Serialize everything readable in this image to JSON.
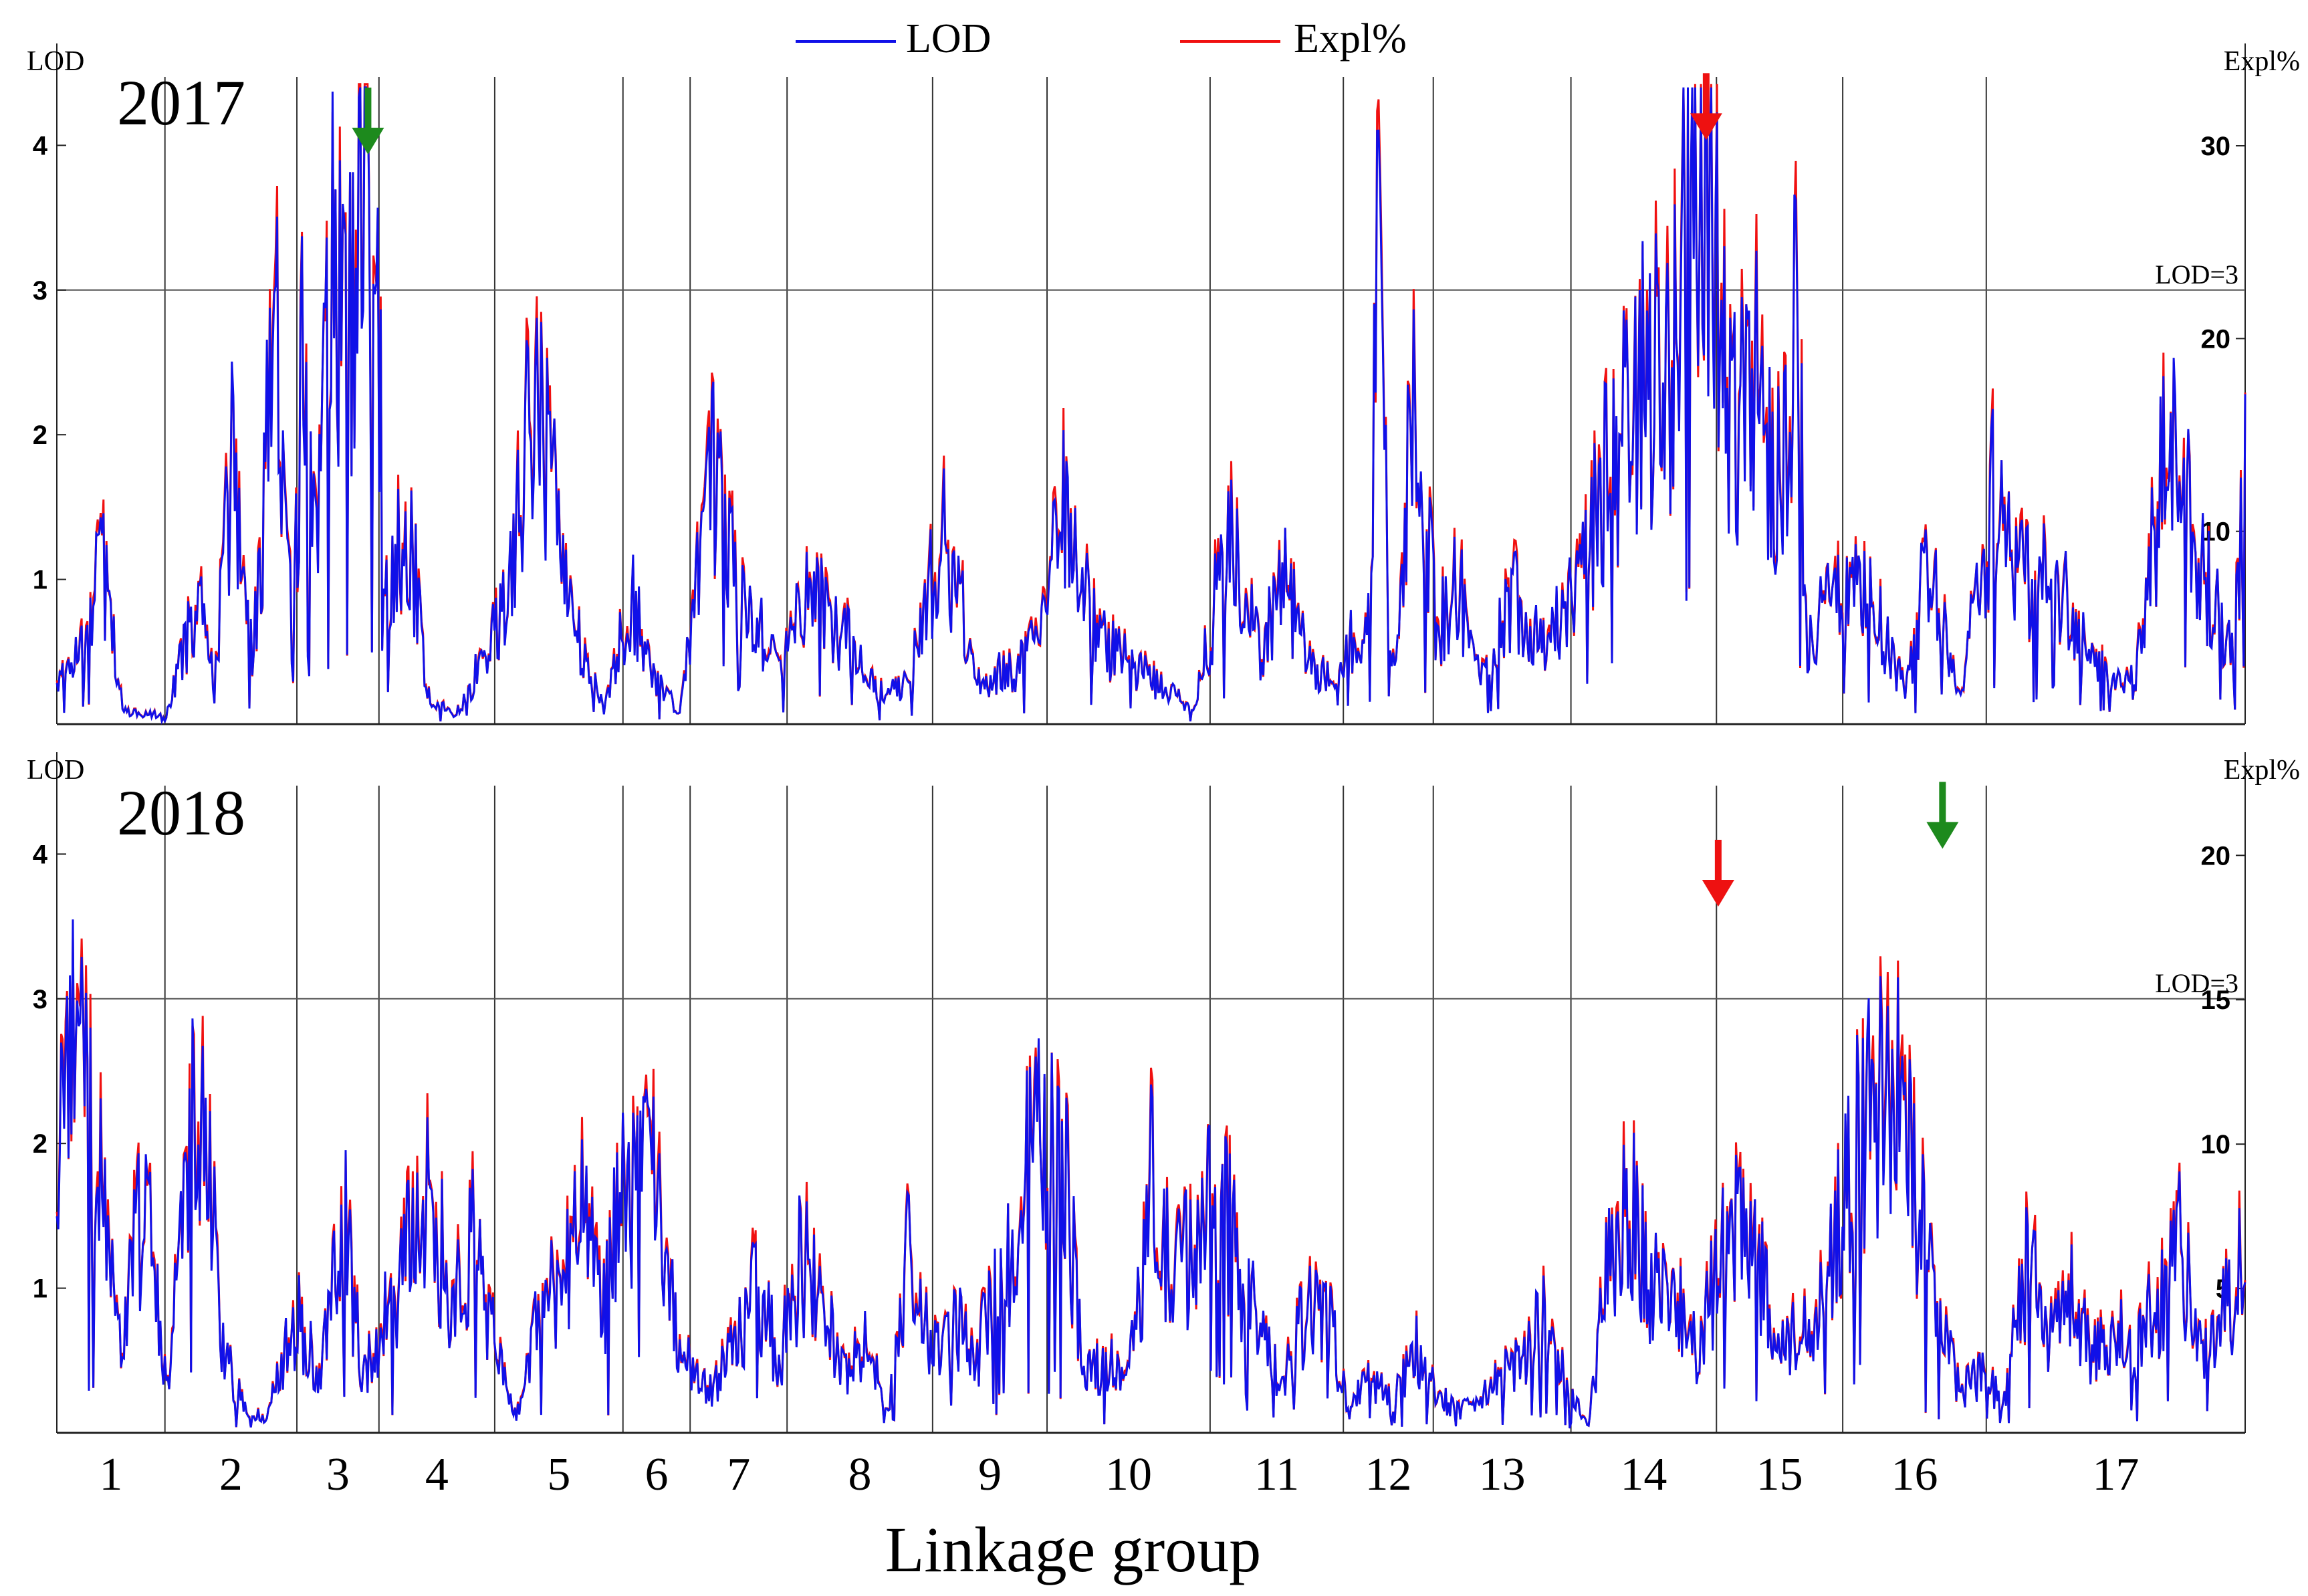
{
  "chart_data": {
    "type": "line",
    "xlabel": "Linkage group",
    "legend": {
      "position": "top-center",
      "entries": [
        {
          "name": "LOD",
          "color": "#1010e8"
        },
        {
          "name": "Expl%",
          "color": "#f01010"
        }
      ]
    },
    "linkage_groups": [
      "1",
      "2",
      "3",
      "4",
      "5",
      "6",
      "7",
      "8",
      "9",
      "10",
      "11",
      "12",
      "13",
      "14",
      "15",
      "16",
      "17"
    ],
    "group_bounds": [
      0,
      0.0494,
      0.1097,
      0.1472,
      0.2001,
      0.2587,
      0.2894,
      0.3337,
      0.4002,
      0.4525,
      0.527,
      0.5879,
      0.629,
      0.6919,
      0.7584,
      0.8161,
      0.8817,
      1.0
    ],
    "panels": [
      {
        "year": "2017",
        "ylabel_left": "LOD",
        "ylabel_right": "Expl%",
        "lod_ylim": [
          0,
          4.45
        ],
        "lod_ticks": [
          1,
          2,
          3,
          4
        ],
        "expl_ylim": [
          0,
          33.4
        ],
        "expl_ticks": [
          10,
          20,
          30
        ],
        "threshold": 3,
        "threshold_label": "LOD=3",
        "markers": [
          {
            "color": "#1d8a1d",
            "x": 0.1422,
            "lod": 3.9
          },
          {
            "color": "#ee1111",
            "x": 0.7537,
            "lod": 4.0
          }
        ],
        "peaks": [
          [
            0.0,
            0.25
          ],
          [
            0.012,
            0.6
          ],
          [
            0.02,
            1.25
          ],
          [
            0.03,
            0.1
          ],
          [
            0.05,
            0.05
          ],
          [
            0.06,
            0.6
          ],
          [
            0.066,
            0.75
          ],
          [
            0.072,
            0.25
          ],
          [
            0.08,
            1.85
          ],
          [
            0.09,
            0.5
          ],
          [
            0.1,
            2.75
          ],
          [
            0.108,
            0.5
          ],
          [
            0.112,
            2.45
          ],
          [
            0.118,
            1.1
          ],
          [
            0.125,
            3.15
          ],
          [
            0.132,
            2.5
          ],
          [
            0.14,
            3.5
          ],
          [
            0.146,
            3.7
          ],
          [
            0.15,
            0.8
          ],
          [
            0.16,
            1.5
          ],
          [
            0.17,
            0.2
          ],
          [
            0.182,
            0.05
          ],
          [
            0.205,
            0.8
          ],
          [
            0.22,
            2.4
          ],
          [
            0.235,
            0.8
          ],
          [
            0.25,
            0.1
          ],
          [
            0.262,
            0.9
          ],
          [
            0.272,
            0.3
          ],
          [
            0.285,
            0.1
          ],
          [
            0.3,
            1.7
          ],
          [
            0.315,
            0.8
          ],
          [
            0.33,
            0.4
          ],
          [
            0.345,
            0.95
          ],
          [
            0.36,
            0.6
          ],
          [
            0.375,
            0.2
          ],
          [
            0.39,
            0.3
          ],
          [
            0.405,
            1.4
          ],
          [
            0.42,
            0.3
          ],
          [
            0.44,
            0.4
          ],
          [
            0.45,
            0.6
          ],
          [
            0.46,
            1.65
          ],
          [
            0.475,
            0.6
          ],
          [
            0.5,
            0.3
          ],
          [
            0.52,
            0.1
          ],
          [
            0.535,
            1.25
          ],
          [
            0.55,
            0.5
          ],
          [
            0.56,
            1.0
          ],
          [
            0.575,
            0.3
          ],
          [
            0.6,
            0.7
          ],
          [
            0.604,
            3.6
          ],
          [
            0.61,
            0.3
          ],
          [
            0.622,
            2.5
          ],
          [
            0.63,
            0.6
          ],
          [
            0.64,
            1.0
          ],
          [
            0.65,
            0.3
          ],
          [
            0.665,
            0.9
          ],
          [
            0.68,
            0.6
          ],
          [
            0.695,
            0.9
          ],
          [
            0.71,
            1.8
          ],
          [
            0.725,
            2.4
          ],
          [
            0.738,
            2.5
          ],
          [
            0.744,
            3.8
          ],
          [
            0.752,
            3.85
          ],
          [
            0.757,
            3.5
          ],
          [
            0.765,
            2.0
          ],
          [
            0.775,
            2.7
          ],
          [
            0.785,
            1.5
          ],
          [
            0.795,
            2.8
          ],
          [
            0.8,
            0.6
          ],
          [
            0.815,
            0.95
          ],
          [
            0.83,
            0.8
          ],
          [
            0.845,
            0.2
          ],
          [
            0.855,
            1.2
          ],
          [
            0.87,
            0.2
          ],
          [
            0.885,
            1.6
          ],
          [
            0.9,
            1.0
          ],
          [
            0.915,
            1.0
          ],
          [
            0.93,
            0.4
          ],
          [
            0.95,
            0.3
          ],
          [
            0.965,
            2.0
          ],
          [
            0.98,
            1.1
          ],
          [
            0.995,
            0.4
          ],
          [
            1.0,
            2.0
          ]
        ]
      },
      {
        "year": "2018",
        "ylabel_left": "LOD",
        "ylabel_right": "Expl%",
        "lod_ylim": [
          0,
          4.45
        ],
        "lod_ticks": [
          1,
          2,
          3,
          4
        ],
        "expl_ylim": [
          0,
          22.3
        ],
        "expl_ticks": [
          5,
          10,
          15,
          20
        ],
        "threshold": 3,
        "threshold_label": "LOD=3",
        "markers": [
          {
            "color": "#ee1111",
            "x": 0.7592,
            "lod": 3.6
          },
          {
            "color": "#1d8a1d",
            "x": 0.8617,
            "lod": 4.0
          }
        ],
        "peaks": [
          [
            0.0,
            1.5
          ],
          [
            0.006,
            2.95
          ],
          [
            0.012,
            2.3
          ],
          [
            0.02,
            1.6
          ],
          [
            0.03,
            0.7
          ],
          [
            0.04,
            1.6
          ],
          [
            0.05,
            0.3
          ],
          [
            0.06,
            1.9
          ],
          [
            0.068,
            2.2
          ],
          [
            0.075,
            0.6
          ],
          [
            0.085,
            0.2
          ],
          [
            0.095,
            0.1
          ],
          [
            0.11,
            0.8
          ],
          [
            0.12,
            0.4
          ],
          [
            0.13,
            1.6
          ],
          [
            0.14,
            0.4
          ],
          [
            0.15,
            0.8
          ],
          [
            0.16,
            1.2
          ],
          [
            0.17,
            1.7
          ],
          [
            0.18,
            0.9
          ],
          [
            0.19,
            1.3
          ],
          [
            0.2,
            0.6
          ],
          [
            0.21,
            0.1
          ],
          [
            0.22,
            0.8
          ],
          [
            0.23,
            1.1
          ],
          [
            0.24,
            1.4
          ],
          [
            0.25,
            0.9
          ],
          [
            0.26,
            1.7
          ],
          [
            0.27,
            1.9
          ],
          [
            0.28,
            0.9
          ],
          [
            0.29,
            0.4
          ],
          [
            0.3,
            0.3
          ],
          [
            0.31,
            0.6
          ],
          [
            0.32,
            1.0
          ],
          [
            0.33,
            0.5
          ],
          [
            0.34,
            1.2
          ],
          [
            0.35,
            0.9
          ],
          [
            0.36,
            0.4
          ],
          [
            0.37,
            0.6
          ],
          [
            0.38,
            0.15
          ],
          [
            0.39,
            1.3
          ],
          [
            0.4,
            0.5
          ],
          [
            0.41,
            0.8
          ],
          [
            0.42,
            0.5
          ],
          [
            0.43,
            1.0
          ],
          [
            0.44,
            1.5
          ],
          [
            0.45,
            2.2
          ],
          [
            0.46,
            1.8
          ],
          [
            0.47,
            0.4
          ],
          [
            0.48,
            0.5
          ],
          [
            0.49,
            0.4
          ],
          [
            0.5,
            1.7
          ],
          [
            0.51,
            1.0
          ],
          [
            0.52,
            1.4
          ],
          [
            0.53,
            1.6
          ],
          [
            0.54,
            1.2
          ],
          [
            0.55,
            0.7
          ],
          [
            0.56,
            0.3
          ],
          [
            0.57,
            0.8
          ],
          [
            0.58,
            0.9
          ],
          [
            0.59,
            0.15
          ],
          [
            0.6,
            0.4
          ],
          [
            0.61,
            0.2
          ],
          [
            0.62,
            0.6
          ],
          [
            0.63,
            0.3
          ],
          [
            0.64,
            0.15
          ],
          [
            0.65,
            0.2
          ],
          [
            0.66,
            0.4
          ],
          [
            0.67,
            0.5
          ],
          [
            0.68,
            0.8
          ],
          [
            0.69,
            0.3
          ],
          [
            0.7,
            0.05
          ],
          [
            0.71,
            1.3
          ],
          [
            0.72,
            1.5
          ],
          [
            0.73,
            1.0
          ],
          [
            0.74,
            0.9
          ],
          [
            0.75,
            0.5
          ],
          [
            0.76,
            1.2
          ],
          [
            0.77,
            1.4
          ],
          [
            0.78,
            1.1
          ],
          [
            0.79,
            0.6
          ],
          [
            0.8,
            0.7
          ],
          [
            0.81,
            1.2
          ],
          [
            0.82,
            1.8
          ],
          [
            0.83,
            2.2
          ],
          [
            0.84,
            2.3
          ],
          [
            0.85,
            1.6
          ],
          [
            0.86,
            0.8
          ],
          [
            0.87,
            0.3
          ],
          [
            0.88,
            0.4
          ],
          [
            0.89,
            0.2
          ],
          [
            0.9,
            1.2
          ],
          [
            0.91,
            0.6
          ],
          [
            0.92,
            1.0
          ],
          [
            0.93,
            0.5
          ],
          [
            0.94,
            0.7
          ],
          [
            0.95,
            0.6
          ],
          [
            0.96,
            0.9
          ],
          [
            0.97,
            1.3
          ],
          [
            0.98,
            0.5
          ],
          [
            0.99,
            0.8
          ],
          [
            1.0,
            1.2
          ]
        ]
      }
    ]
  }
}
